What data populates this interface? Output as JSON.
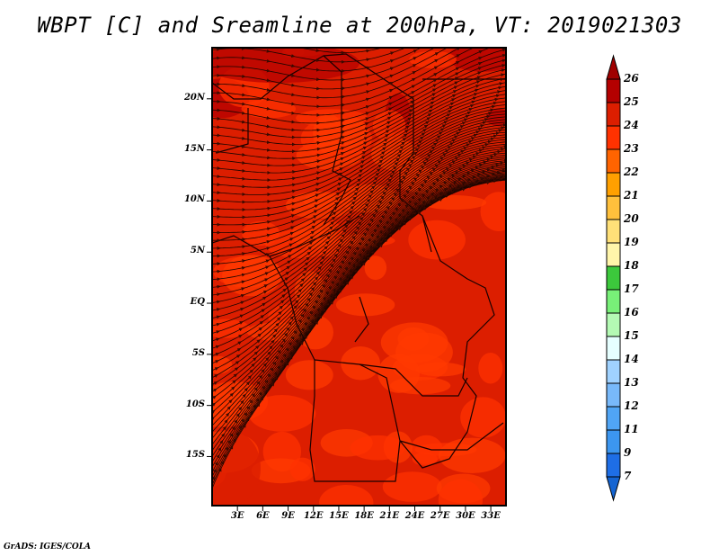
{
  "title": "WBPT [C] and Sreamline at 200hPa, VT: 2019021303",
  "footer": "GrADS: IGES/COLA",
  "map": {
    "lon_range": [
      0,
      34.8
    ],
    "lat_range": [
      -19.8,
      25
    ],
    "y_labels": [
      {
        "text": "20N",
        "lat": 20
      },
      {
        "text": "15N",
        "lat": 15
      },
      {
        "text": "10N",
        "lat": 10
      },
      {
        "text": "5N",
        "lat": 5
      },
      {
        "text": "EQ",
        "lat": 0
      },
      {
        "text": "5S",
        "lat": -5
      },
      {
        "text": "10S",
        "lat": -10
      },
      {
        "text": "15S",
        "lat": -15
      }
    ],
    "x_labels": [
      {
        "text": "3E",
        "lon": 3
      },
      {
        "text": "6E",
        "lon": 6
      },
      {
        "text": "9E",
        "lon": 9
      },
      {
        "text": "12E",
        "lon": 12
      },
      {
        "text": "15E",
        "lon": 15
      },
      {
        "text": "18E",
        "lon": 18
      },
      {
        "text": "21E",
        "lon": 21
      },
      {
        "text": "24E",
        "lon": 24
      },
      {
        "text": "27E",
        "lon": 27
      },
      {
        "text": "30E",
        "lon": 30
      },
      {
        "text": "33E",
        "lon": 33
      }
    ]
  },
  "colorbar": {
    "labels": [
      "26",
      "25",
      "24",
      "23",
      "22",
      "21",
      "20",
      "19",
      "18",
      "17",
      "16",
      "15",
      "14",
      "13",
      "12",
      "11",
      "9",
      "7"
    ],
    "top_arrow_color": "#a00000",
    "bottom_arrow_color": "#1464d2",
    "colors": [
      "#b40000",
      "#dc1e00",
      "#ff3200",
      "#ff6400",
      "#ffa000",
      "#ffc03c",
      "#ffe078",
      "#fff5aa",
      "#3cc83c",
      "#78f078",
      "#b4fab4",
      "#e6ffff",
      "#a0d2ff",
      "#78b9fa",
      "#50a5f5",
      "#3c96f0",
      "#1e6ee6"
    ]
  }
}
